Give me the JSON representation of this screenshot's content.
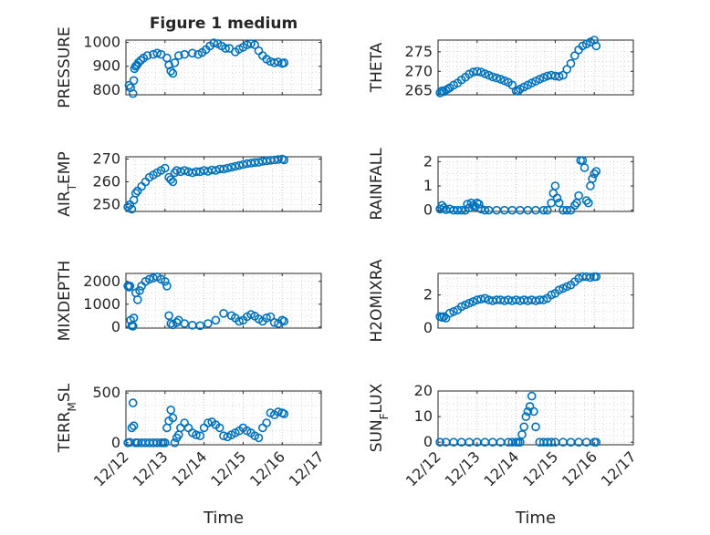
{
  "figure": {
    "title": "Figure 1 medium",
    "xlabel": "Time",
    "x_tick_labels": [
      "12/12",
      "12/13",
      "12/14",
      "12/15",
      "12/16",
      "12/17"
    ],
    "x_axis_unit": "date (day of December)",
    "x_axis_range": [
      12,
      17
    ]
  },
  "colors": {
    "marker": "#0072BD",
    "axis": "#262626",
    "grid": "#BFBFBF"
  },
  "chart_data": [
    {
      "type": "scatter",
      "position": "row1-left",
      "ylabel": "PRESSURE",
      "ylim": [
        780,
        1010
      ],
      "yticks": [
        800,
        900,
        1000
      ],
      "show_xticklabels": false,
      "x": [
        12.08,
        12.12,
        12.18,
        12.2,
        12.22,
        12.25,
        12.28,
        12.32,
        12.38,
        12.45,
        12.55,
        12.7,
        12.8,
        12.9,
        13.05,
        13.1,
        13.15,
        13.2,
        13.25,
        13.35,
        13.5,
        13.7,
        13.85,
        13.95,
        14.05,
        14.15,
        14.25,
        14.35,
        14.45,
        14.55,
        14.65,
        14.8,
        14.9,
        15.0,
        15.1,
        15.2,
        15.3,
        15.4,
        15.5,
        15.6,
        15.7,
        15.8,
        15.9,
        16.0,
        16.05
      ],
      "y": [
        820,
        810,
        785,
        840,
        890,
        900,
        905,
        915,
        925,
        935,
        945,
        950,
        955,
        950,
        935,
        905,
        880,
        870,
        915,
        945,
        950,
        955,
        950,
        958,
        970,
        985,
        998,
        995,
        985,
        975,
        975,
        960,
        972,
        980,
        990,
        995,
        990,
        965,
        945,
        930,
        920,
        915,
        918,
        912,
        915
      ]
    },
    {
      "type": "scatter",
      "position": "row1-right",
      "ylabel": "THETA",
      "ylim": [
        264,
        278
      ],
      "yticks": [
        265,
        270,
        275
      ],
      "show_xticklabels": false,
      "x": [
        12.05,
        12.1,
        12.15,
        12.2,
        12.25,
        12.3,
        12.4,
        12.5,
        12.6,
        12.7,
        12.8,
        12.9,
        13.0,
        13.1,
        13.2,
        13.3,
        13.4,
        13.5,
        13.6,
        13.7,
        13.8,
        13.9,
        14.0,
        14.05,
        14.1,
        14.2,
        14.3,
        14.4,
        14.5,
        14.6,
        14.7,
        14.8,
        14.9,
        15.0,
        15.1,
        15.2,
        15.3,
        15.4,
        15.5,
        15.6,
        15.7,
        15.8,
        15.9,
        16.0,
        16.05
      ],
      "y": [
        264.5,
        265,
        264.8,
        265.2,
        265.5,
        265.8,
        266.5,
        267,
        267.8,
        268.5,
        269.3,
        269.8,
        270,
        269.8,
        269.4,
        269,
        268.6,
        268.3,
        268,
        267.6,
        267.2,
        266.5,
        265,
        264.9,
        265.5,
        266,
        266.5,
        267,
        267.5,
        268,
        268.4,
        268.8,
        269,
        268.8,
        268.7,
        269,
        270.5,
        272,
        274,
        275.5,
        276.5,
        277,
        277.5,
        278,
        276.5
      ]
    },
    {
      "type": "scatter",
      "position": "row2-left",
      "ylabel": "AIR_TEMP",
      "ylim": [
        247,
        271
      ],
      "yticks": [
        250,
        260,
        270
      ],
      "show_xticklabels": false,
      "x": [
        12.05,
        12.1,
        12.15,
        12.2,
        12.25,
        12.3,
        12.4,
        12.5,
        12.6,
        12.7,
        12.8,
        12.9,
        13.0,
        13.1,
        13.15,
        13.2,
        13.25,
        13.3,
        13.4,
        13.5,
        13.6,
        13.7,
        13.8,
        13.9,
        14.0,
        14.1,
        14.2,
        14.3,
        14.4,
        14.5,
        14.6,
        14.7,
        14.8,
        14.9,
        15.0,
        15.1,
        15.2,
        15.3,
        15.4,
        15.5,
        15.6,
        15.7,
        15.8,
        15.9,
        16.0,
        16.05
      ],
      "y": [
        249,
        250,
        248,
        252,
        255,
        256,
        258,
        260,
        262,
        263,
        264,
        265,
        266,
        262,
        261,
        260,
        264,
        265,
        264.5,
        265,
        264.5,
        264,
        264.5,
        264.5,
        265,
        264.6,
        265.2,
        265,
        265.6,
        265.6,
        266,
        266.4,
        266.8,
        267.2,
        267.6,
        268,
        268.2,
        268.5,
        268.6,
        269,
        269.2,
        269.5,
        269.6,
        269.8,
        270,
        269.6
      ]
    },
    {
      "type": "scatter",
      "position": "row2-right",
      "ylabel": "RAINFALL",
      "ylim": [
        -0.05,
        2.2
      ],
      "yticks": [
        0,
        1,
        2
      ],
      "show_xticklabels": false,
      "x": [
        12.05,
        12.1,
        12.15,
        12.2,
        12.3,
        12.4,
        12.5,
        12.6,
        12.7,
        12.75,
        12.8,
        12.85,
        12.9,
        12.95,
        13.0,
        13.05,
        13.1,
        13.2,
        13.3,
        13.5,
        13.7,
        13.9,
        14.1,
        14.3,
        14.5,
        14.7,
        14.8,
        14.9,
        14.95,
        15.0,
        15.05,
        15.1,
        15.2,
        15.3,
        15.4,
        15.5,
        15.55,
        15.6,
        15.65,
        15.7,
        15.75,
        15.8,
        15.85,
        15.9,
        15.95,
        16.0,
        16.05
      ],
      "y": [
        0.05,
        0.2,
        0.1,
        0.02,
        0.05,
        0,
        0,
        0,
        0,
        0.25,
        0.1,
        0.3,
        0.2,
        0.15,
        0.3,
        0.25,
        0.05,
        0,
        0,
        0,
        0,
        0,
        0,
        0,
        0,
        0,
        0,
        0.3,
        0.7,
        1.0,
        0.5,
        0.3,
        0,
        0,
        0,
        0.2,
        0.3,
        0.6,
        2.05,
        2.05,
        1.75,
        0.4,
        0.3,
        1.0,
        1.3,
        1.5,
        1.6
      ]
    },
    {
      "type": "scatter",
      "position": "row3-left",
      "ylabel": "MIXDEPTH",
      "ylim": [
        -50,
        2350
      ],
      "yticks": [
        0,
        1000,
        2000
      ],
      "show_xticklabels": false,
      "x": [
        12.05,
        12.08,
        12.1,
        12.12,
        12.15,
        12.18,
        12.2,
        12.25,
        12.3,
        12.35,
        12.4,
        12.5,
        12.6,
        12.7,
        12.8,
        12.9,
        13.0,
        13.05,
        13.1,
        13.15,
        13.2,
        13.3,
        13.35,
        13.5,
        13.7,
        13.9,
        14.1,
        14.3,
        14.5,
        14.7,
        14.8,
        14.9,
        15.0,
        15.1,
        15.2,
        15.3,
        15.4,
        15.5,
        15.6,
        15.7,
        15.8,
        15.9,
        16.0,
        16.05
      ],
      "y": [
        1800,
        1750,
        1800,
        300,
        50,
        40,
        400,
        1500,
        1200,
        1600,
        1800,
        2000,
        2100,
        2150,
        2200,
        2100,
        2000,
        1800,
        500,
        150,
        100,
        200,
        300,
        150,
        80,
        60,
        150,
        300,
        600,
        500,
        400,
        250,
        300,
        450,
        550,
        480,
        350,
        250,
        400,
        450,
        200,
        150,
        300,
        250
      ]
    },
    {
      "type": "scatter",
      "position": "row3-right",
      "ylabel": "H2OMIXRA",
      "ylim": [
        0,
        3.3
      ],
      "yticks": [
        0,
        2
      ],
      "show_xticklabels": false,
      "x": [
        12.05,
        12.1,
        12.15,
        12.2,
        12.3,
        12.4,
        12.5,
        12.6,
        12.7,
        12.8,
        12.9,
        13.0,
        13.1,
        13.2,
        13.3,
        13.4,
        13.5,
        13.6,
        13.7,
        13.8,
        13.9,
        14.0,
        14.1,
        14.2,
        14.3,
        14.4,
        14.5,
        14.6,
        14.7,
        14.8,
        14.9,
        15.0,
        15.1,
        15.2,
        15.3,
        15.4,
        15.5,
        15.6,
        15.7,
        15.8,
        15.9,
        16.0,
        16.05
      ],
      "y": [
        0.7,
        0.65,
        0.7,
        0.6,
        0.9,
        1.0,
        1.1,
        1.3,
        1.4,
        1.5,
        1.6,
        1.7,
        1.75,
        1.8,
        1.7,
        1.65,
        1.7,
        1.7,
        1.65,
        1.7,
        1.65,
        1.7,
        1.65,
        1.7,
        1.65,
        1.7,
        1.65,
        1.7,
        1.7,
        1.8,
        2.0,
        2.1,
        2.3,
        2.4,
        2.5,
        2.6,
        2.8,
        3.0,
        3.1,
        3.1,
        3.05,
        3.1,
        3.1
      ]
    },
    {
      "type": "scatter",
      "position": "row4-left",
      "ylabel": "TERR_MSL",
      "ylim": [
        -20,
        520
      ],
      "yticks": [
        0,
        500
      ],
      "show_xticklabels": true,
      "x": [
        12.05,
        12.1,
        12.15,
        12.18,
        12.2,
        12.25,
        12.3,
        12.4,
        12.5,
        12.6,
        12.7,
        12.8,
        12.9,
        12.95,
        13.0,
        13.05,
        13.1,
        13.15,
        13.2,
        13.25,
        13.3,
        13.35,
        13.4,
        13.5,
        13.6,
        13.7,
        13.8,
        13.9,
        14.0,
        14.1,
        14.2,
        14.3,
        14.4,
        14.5,
        14.6,
        14.7,
        14.8,
        14.9,
        15.0,
        15.1,
        15.2,
        15.3,
        15.4,
        15.5,
        15.6,
        15.7,
        15.8,
        15.9,
        16.0,
        16.05
      ],
      "y": [
        0,
        5,
        150,
        400,
        170,
        0,
        0,
        0,
        0,
        0,
        0,
        0,
        0,
        0,
        0,
        150,
        220,
        330,
        250,
        0,
        50,
        80,
        150,
        200,
        150,
        100,
        80,
        70,
        150,
        200,
        210,
        180,
        150,
        70,
        60,
        80,
        100,
        120,
        150,
        120,
        100,
        70,
        50,
        150,
        200,
        300,
        280,
        310,
        300,
        290
      ]
    },
    {
      "type": "scatter",
      "position": "row4-right",
      "ylabel": "SUN_FLUX",
      "ylim": [
        -1,
        20
      ],
      "yticks": [
        0,
        10,
        20
      ],
      "show_xticklabels": true,
      "x": [
        12.05,
        12.2,
        12.4,
        12.6,
        12.8,
        13.0,
        13.2,
        13.4,
        13.6,
        13.8,
        13.9,
        14.0,
        14.05,
        14.1,
        14.15,
        14.2,
        14.25,
        14.3,
        14.35,
        14.4,
        14.45,
        14.5,
        14.6,
        14.7,
        14.8,
        14.9,
        15.0,
        15.2,
        15.4,
        15.6,
        15.8,
        16.0,
        16.05
      ],
      "y": [
        0,
        0,
        0,
        0,
        0,
        0,
        0,
        0,
        0,
        0,
        0,
        0,
        0,
        0,
        3,
        6,
        10,
        12,
        14,
        18,
        12,
        6,
        0,
        0,
        0,
        0,
        0,
        0,
        0,
        0,
        0,
        0,
        0
      ]
    }
  ]
}
